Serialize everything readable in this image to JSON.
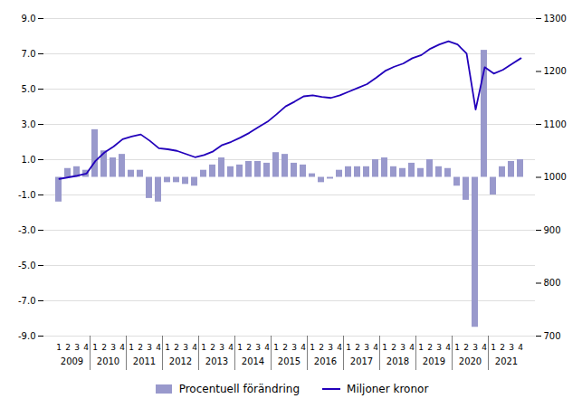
{
  "chart_data": {
    "type": "bar",
    "categories": [
      "1",
      "2",
      "3",
      "4",
      "1",
      "2",
      "3",
      "4",
      "1",
      "2",
      "3",
      "4",
      "1",
      "2",
      "3",
      "4",
      "1",
      "2",
      "3",
      "4",
      "1",
      "2",
      "3",
      "4",
      "1",
      "2",
      "3",
      "4",
      "1",
      "2",
      "3",
      "4",
      "1",
      "2",
      "3",
      "4",
      "1",
      "2",
      "3",
      "4",
      "1",
      "2",
      "3",
      "4",
      "1",
      "2",
      "3",
      "4",
      "1",
      "2",
      "3",
      "4"
    ],
    "years": [
      2009,
      2009,
      2009,
      2009,
      2010,
      2010,
      2010,
      2010,
      2011,
      2011,
      2011,
      2011,
      2012,
      2012,
      2012,
      2012,
      2013,
      2013,
      2013,
      2013,
      2014,
      2014,
      2014,
      2014,
      2015,
      2015,
      2015,
      2015,
      2016,
      2016,
      2016,
      2016,
      2017,
      2017,
      2017,
      2017,
      2018,
      2018,
      2018,
      2018,
      2019,
      2019,
      2019,
      2019,
      2020,
      2020,
      2020,
      2020,
      2021,
      2021,
      2021,
      2021
    ],
    "series": [
      {
        "name": "Procentuell förändring",
        "type": "bar",
        "color": "#9999cc",
        "values": [
          -1.4,
          0.5,
          0.6,
          0.4,
          2.7,
          1.5,
          1.1,
          1.3,
          0.4,
          0.4,
          -1.2,
          -1.4,
          -0.3,
          -0.3,
          -0.4,
          -0.5,
          0.4,
          0.7,
          1.1,
          0.6,
          0.7,
          0.9,
          0.9,
          0.8,
          1.4,
          1.3,
          0.8,
          0.7,
          0.2,
          -0.3,
          -0.1,
          0.4,
          0.6,
          0.6,
          0.6,
          1.0,
          1.1,
          0.6,
          0.5,
          0.8,
          0.5,
          1.0,
          0.6,
          0.5,
          -0.5,
          -1.3,
          -8.5,
          7.2,
          -1.0,
          0.6,
          0.9,
          1.0
        ]
      },
      {
        "name": "Miljoner kronor",
        "type": "line",
        "color": "#2200bb",
        "axis": "y2",
        "values": [
          997,
          1000,
          1003,
          1007,
          1031,
          1047,
          1058,
          1072,
          1077,
          1081,
          1069,
          1055,
          1053,
          1050,
          1044,
          1038,
          1042,
          1049,
          1061,
          1067,
          1075,
          1084,
          1095,
          1105,
          1119,
          1134,
          1143,
          1153,
          1155,
          1152,
          1150,
          1155,
          1162,
          1169,
          1176,
          1188,
          1201,
          1209,
          1215,
          1225,
          1231,
          1243,
          1251,
          1257,
          1251,
          1234,
          1128,
          1208,
          1196,
          1203,
          1214,
          1225
        ]
      }
    ],
    "ylim": [
      -9.0,
      9.0
    ],
    "yticks": [
      {
        "value": -9.0,
        "label": "-9.0"
      },
      {
        "value": -7.0,
        "label": "-7.0"
      },
      {
        "value": -5.0,
        "label": "-5.0"
      },
      {
        "value": -3.0,
        "label": "-3.0"
      },
      {
        "value": -1.0,
        "label": "-1.0"
      },
      {
        "value": 1.0,
        "label": "1.0"
      },
      {
        "value": 3.0,
        "label": "3.0"
      },
      {
        "value": 5.0,
        "label": "5.0"
      },
      {
        "value": 7.0,
        "label": "7.0"
      },
      {
        "value": 9.0,
        "label": "9.0"
      }
    ],
    "y2lim": [
      700,
      1300
    ],
    "y2ticks": [
      700,
      800,
      900,
      1000,
      1100,
      1200,
      1300
    ],
    "grid": true,
    "legend": "bottom"
  }
}
